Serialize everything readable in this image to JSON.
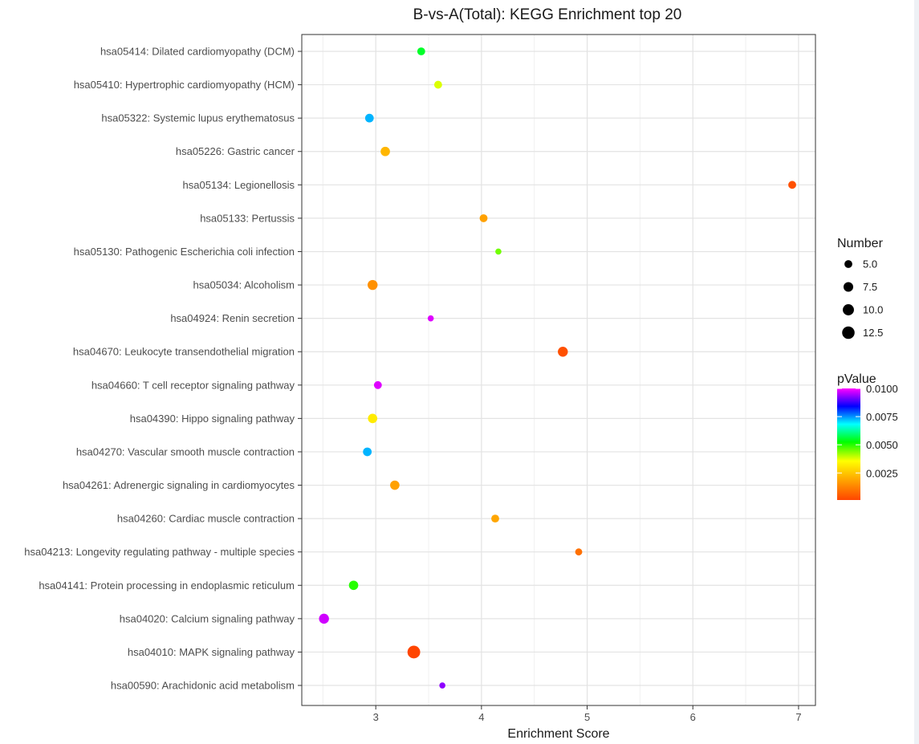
{
  "chart_data": {
    "type": "scatter",
    "title": "B-vs-A(Total): KEGG Enrichment top 20",
    "xlabel": "Enrichment Score",
    "ylabel": "",
    "xlim": [
      2.3,
      7.16
    ],
    "xticks": [
      3,
      4,
      5,
      6,
      7
    ],
    "grid": true,
    "categories": [
      "hsa05414: Dilated cardiomyopathy (DCM)",
      "hsa05410: Hypertrophic cardiomyopathy (HCM)",
      "hsa05322: Systemic lupus erythematosus",
      "hsa05226: Gastric cancer",
      "hsa05134: Legionellosis",
      "hsa05133: Pertussis",
      "hsa05130: Pathogenic Escherichia coli infection",
      "hsa05034: Alcoholism",
      "hsa04924: Renin secretion",
      "hsa04670: Leukocyte transendothelial migration",
      "hsa04660: T cell receptor signaling pathway",
      "hsa04390: Hippo signaling pathway",
      "hsa04270: Vascular smooth muscle contraction",
      "hsa04261: Adrenergic signaling in cardiomyocytes",
      "hsa04260: Cardiac muscle contraction",
      "hsa04213: Longevity regulating pathway - multiple species",
      "hsa04141: Protein processing in endoplasmic reticulum",
      "hsa04020: Calcium signaling pathway",
      "hsa04010: MAPK signaling pathway",
      "hsa00590: Arachidonic acid metabolism"
    ],
    "points": [
      {
        "enrichment": 3.43,
        "number": 5,
        "pvalue": 0.0055
      },
      {
        "enrichment": 3.59,
        "number": 5,
        "pvalue": 0.0038
      },
      {
        "enrichment": 2.94,
        "number": 6,
        "pvalue": 0.0073
      },
      {
        "enrichment": 3.09,
        "number": 7,
        "pvalue": 0.0022
      },
      {
        "enrichment": 6.94,
        "number": 5,
        "pvalue": 0.0003
      },
      {
        "enrichment": 4.02,
        "number": 5,
        "pvalue": 0.0018
      },
      {
        "enrichment": 4.16,
        "number": 3,
        "pvalue": 0.0045
      },
      {
        "enrichment": 2.97,
        "number": 8,
        "pvalue": 0.0015
      },
      {
        "enrichment": 3.52,
        "number": 3,
        "pvalue": 0.0098
      },
      {
        "enrichment": 4.77,
        "number": 8,
        "pvalue": 0.0003
      },
      {
        "enrichment": 3.02,
        "number": 5,
        "pvalue": 0.0098
      },
      {
        "enrichment": 2.97,
        "number": 7,
        "pvalue": 0.0032
      },
      {
        "enrichment": 2.92,
        "number": 6,
        "pvalue": 0.0073
      },
      {
        "enrichment": 3.18,
        "number": 7,
        "pvalue": 0.0018
      },
      {
        "enrichment": 4.13,
        "number": 5,
        "pvalue": 0.0019
      },
      {
        "enrichment": 4.92,
        "number": 4,
        "pvalue": 0.0009
      },
      {
        "enrichment": 2.79,
        "number": 7,
        "pvalue": 0.005
      },
      {
        "enrichment": 2.51,
        "number": 8,
        "pvalue": 0.0097
      },
      {
        "enrichment": 3.36,
        "number": 13,
        "pvalue": 0.0001
      },
      {
        "enrichment": 3.63,
        "number": 3,
        "pvalue": 0.0093
      }
    ],
    "size_legend": {
      "title": "Number",
      "values": [
        5.0,
        7.5,
        10.0,
        12.5
      ],
      "labels": [
        "5.0",
        "7.5",
        "10.0",
        "12.5"
      ]
    },
    "color_legend": {
      "title": "pValue",
      "min": 0.0001,
      "max": 0.01,
      "ticks": [
        0.01,
        0.0075,
        0.005,
        0.0025
      ],
      "labels": [
        "0.0100",
        "0.0075",
        "0.0050",
        "0.0025"
      ],
      "colors": [
        "#ff4500",
        "#ffa500",
        "#ffff00",
        "#00ff00",
        "#00ffff",
        "#0000ff",
        "#ff00ff"
      ]
    }
  }
}
